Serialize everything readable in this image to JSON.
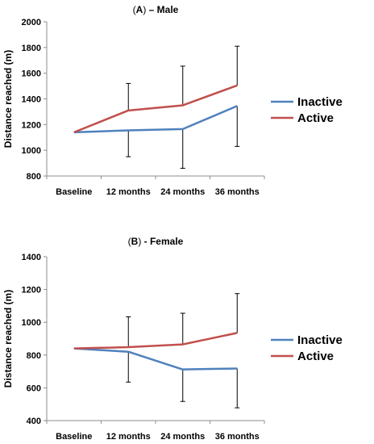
{
  "chart_data": [
    {
      "type": "line",
      "title_letter": "A",
      "title_rest": " – Male",
      "ylabel": "Distance reached (m)",
      "categories": [
        "Baseline",
        "12 months",
        "24 months",
        "36 months"
      ],
      "ylim": [
        800,
        2000
      ],
      "yticks": [
        800,
        1000,
        1200,
        1400,
        1600,
        1800,
        2000
      ],
      "grid": false,
      "legend_position": "right",
      "series": [
        {
          "name": "Inactive",
          "color": "#4f81bd",
          "values": [
            1140,
            1155,
            1165,
            1345
          ],
          "error_down": [
            null,
            205,
            305,
            315
          ]
        },
        {
          "name": "Active",
          "color": "#c0504d",
          "values": [
            1140,
            1310,
            1350,
            1505
          ],
          "error_up": [
            null,
            210,
            305,
            305
          ]
        }
      ]
    },
    {
      "type": "line",
      "title_letter": "B",
      "title_rest": " - Female",
      "ylabel": "Distance reached (m)",
      "categories": [
        "Baseline",
        "12 months",
        "24 months",
        "36 months"
      ],
      "ylim": [
        400,
        1400
      ],
      "yticks": [
        400,
        600,
        800,
        1000,
        1200,
        1400
      ],
      "grid": false,
      "legend_position": "right",
      "series": [
        {
          "name": "Inactive",
          "color": "#4f81bd",
          "values": [
            840,
            820,
            712,
            718
          ],
          "error_down": [
            null,
            185,
            195,
            240
          ]
        },
        {
          "name": "Active",
          "color": "#c0504d",
          "values": [
            840,
            848,
            865,
            935
          ],
          "error_up": [
            null,
            185,
            190,
            240
          ]
        }
      ]
    }
  ]
}
